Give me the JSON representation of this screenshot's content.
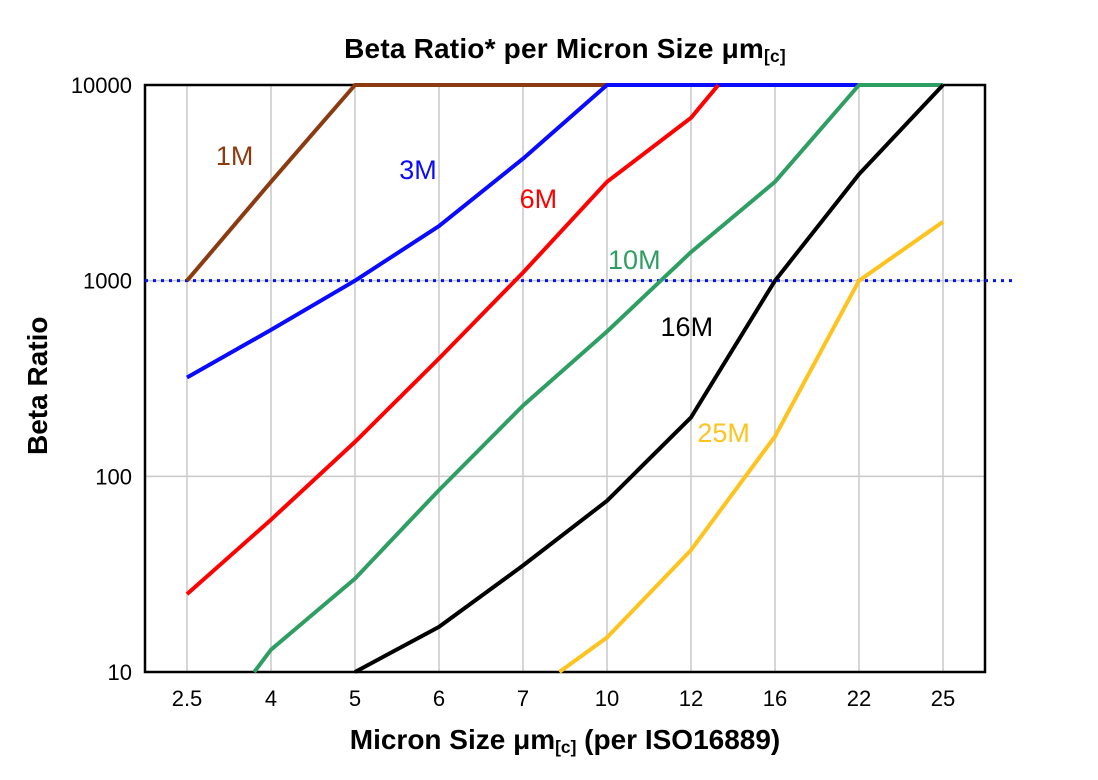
{
  "text": {
    "title_prefix": "Beta Ratio* per Micron Size μm",
    "title_sub": "[c]",
    "xlabel_prefix": "Micron Size μm",
    "xlabel_sub": "[c]",
    "xlabel_suffix": " (per ISO16889)"
  },
  "chart_data": {
    "type": "line",
    "title": "Beta Ratio* per Micron Size μm[c]",
    "xlabel": "Micron Size μm[c] (per ISO16889)",
    "ylabel": "Beta Ratio",
    "x_categories": [
      2.5,
      4,
      5,
      6,
      7,
      10,
      12,
      16,
      22,
      25
    ],
    "x_tick_labels": [
      "2.5",
      "4",
      "5",
      "6",
      "7",
      "10",
      "12",
      "16",
      "22",
      "25"
    ],
    "y_scale": "log",
    "ylim": [
      10,
      10000
    ],
    "y_ticks": [
      10,
      100,
      1000,
      10000
    ],
    "y_tick_labels": [
      "10",
      "100",
      "1000",
      "10000"
    ],
    "grid": true,
    "grid_color": "#c9c9c9",
    "border_color": "#000000",
    "reference_line": {
      "y": 1000,
      "color": "#0014ff",
      "style": "dotted"
    },
    "series": [
      {
        "name": "1M",
        "color": "#8c3b10",
        "points": [
          [
            2.5,
            1000
          ],
          [
            4,
            3200
          ],
          [
            5,
            10000
          ],
          [
            10,
            10000
          ]
        ],
        "label_at": [
          3.35,
          3900
        ]
      },
      {
        "name": "3M",
        "color": "#0a0aff",
        "points": [
          [
            2.5,
            320
          ],
          [
            4,
            560
          ],
          [
            5,
            1000
          ],
          [
            6,
            1900
          ],
          [
            7,
            4200
          ],
          [
            10,
            10000
          ],
          [
            22,
            10000
          ]
        ],
        "label_at": [
          5.75,
          3300
        ]
      },
      {
        "name": "6M",
        "color": "#ff0000",
        "points": [
          [
            2.5,
            25
          ],
          [
            4,
            60
          ],
          [
            5,
            150
          ],
          [
            6,
            400
          ],
          [
            7,
            1100
          ],
          [
            10,
            3200
          ],
          [
            12,
            6800
          ],
          [
            13.3,
            10000
          ]
        ],
        "label_at": [
          7.55,
          2350
        ]
      },
      {
        "name": "10M",
        "color": "#2f9e63",
        "points": [
          [
            3.7,
            10
          ],
          [
            4,
            13
          ],
          [
            5,
            30
          ],
          [
            6,
            85
          ],
          [
            7,
            230
          ],
          [
            10,
            550
          ],
          [
            12,
            1400
          ],
          [
            16,
            3200
          ],
          [
            22,
            10000
          ],
          [
            25,
            10000
          ]
        ],
        "label_at": [
          10.65,
          1150
        ]
      },
      {
        "name": "16M",
        "color": "#000000",
        "points": [
          [
            5,
            10
          ],
          [
            6,
            17
          ],
          [
            7,
            35
          ],
          [
            10,
            75
          ],
          [
            12,
            200
          ],
          [
            16,
            1000
          ],
          [
            22,
            3500
          ],
          [
            25,
            10000
          ]
        ],
        "label_at": [
          11.9,
          520
        ]
      },
      {
        "name": "25M",
        "color": "#ffc31f",
        "points": [
          [
            8.3,
            10
          ],
          [
            10,
            15
          ],
          [
            12,
            42
          ],
          [
            16,
            160
          ],
          [
            22,
            1000
          ],
          [
            25,
            2000
          ]
        ],
        "label_at": [
          13.55,
          150
        ]
      }
    ]
  }
}
